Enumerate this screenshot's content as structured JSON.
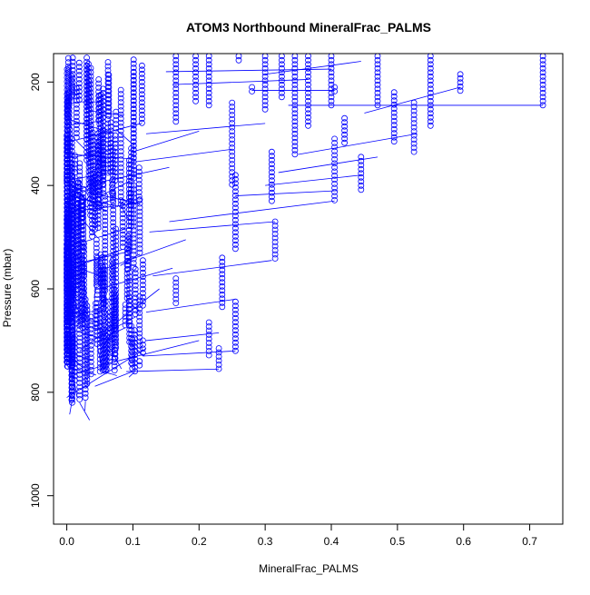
{
  "chart_data": {
    "type": "scatter",
    "title": "ATOM3 Northbound MineralFrac_PALMS",
    "xlabel": "MineralFrac_PALMS",
    "ylabel": "Pressure (mbar)",
    "xlim": [
      -0.02,
      0.75
    ],
    "ylim": [
      1055,
      145
    ],
    "y_reversed": true,
    "xticks": [
      0.0,
      0.1,
      0.2,
      0.3,
      0.4,
      0.5,
      0.6,
      0.7
    ],
    "xtick_labels": [
      "0.0",
      "0.1",
      "0.2",
      "0.3",
      "0.4",
      "0.5",
      "0.6",
      "0.7"
    ],
    "yticks": [
      200,
      400,
      600,
      800,
      1000
    ],
    "ytick_labels": [
      "200",
      "400",
      "600",
      "800",
      "1000"
    ],
    "grid": false,
    "marker": "open-circle",
    "connect_points": true,
    "color": "#0000ff",
    "profiles": [
      {
        "x": 0.72,
        "y": [
          150,
          245
        ]
      },
      {
        "x": 0.595,
        "y": [
          185,
          222
        ]
      },
      {
        "x": 0.55,
        "y": [
          150,
          285
        ]
      },
      {
        "x": 0.525,
        "y": [
          240,
          335
        ]
      },
      {
        "x": 0.495,
        "y": [
          220,
          315
        ]
      },
      {
        "x": 0.47,
        "y": [
          150,
          250
        ]
      },
      {
        "x": 0.445,
        "y": [
          345,
          415
        ]
      },
      {
        "x": 0.42,
        "y": [
          270,
          320
        ]
      },
      {
        "x": 0.405,
        "y": [
          310,
          430
        ]
      },
      {
        "x": 0.405,
        "y": [
          210,
          222
        ]
      },
      {
        "x": 0.4,
        "y": [
          150,
          245
        ]
      },
      {
        "x": 0.365,
        "y": [
          150,
          290
        ]
      },
      {
        "x": 0.345,
        "y": [
          150,
          345
        ]
      },
      {
        "x": 0.325,
        "y": [
          150,
          235
        ]
      },
      {
        "x": 0.315,
        "y": [
          470,
          545
        ]
      },
      {
        "x": 0.31,
        "y": [
          335,
          435
        ]
      },
      {
        "x": 0.3,
        "y": [
          150,
          260
        ]
      },
      {
        "x": 0.28,
        "y": [
          210,
          220
        ]
      },
      {
        "x": 0.26,
        "y": [
          150,
          160
        ]
      },
      {
        "x": 0.255,
        "y": [
          625,
          725
        ]
      },
      {
        "x": 0.255,
        "y": [
          380,
          530
        ]
      },
      {
        "x": 0.25,
        "y": [
          240,
          400
        ]
      },
      {
        "x": 0.235,
        "y": [
          540,
          640
        ]
      },
      {
        "x": 0.23,
        "y": [
          715,
          755
        ]
      },
      {
        "x": 0.215,
        "y": [
          665,
          730
        ]
      },
      {
        "x": 0.215,
        "y": [
          150,
          250
        ]
      },
      {
        "x": 0.195,
        "y": [
          150,
          240
        ]
      },
      {
        "x": 0.165,
        "y": [
          150,
          280
        ]
      },
      {
        "x": 0.165,
        "y": [
          580,
          630
        ]
      },
      {
        "x": 0.115,
        "y": [
          545,
          635
        ]
      },
      {
        "x": 0.115,
        "y": [
          700,
          730
        ]
      },
      {
        "x": 0.11,
        "y": [
          615,
          720
        ]
      },
      {
        "x": 0.11,
        "y": [
          740,
          752
        ]
      }
    ],
    "connectors": [
      {
        "x": [
          0.72,
          0.335
        ],
        "y": [
          245,
          245
        ]
      },
      {
        "x": [
          0.595,
          0.45
        ],
        "y": [
          210,
          260
        ]
      },
      {
        "x": [
          0.53,
          0.35
        ],
        "y": [
          300,
          340
        ]
      },
      {
        "x": [
          0.47,
          0.32
        ],
        "y": [
          345,
          375
        ]
      },
      {
        "x": [
          0.445,
          0.3
        ],
        "y": [
          380,
          400
        ]
      },
      {
        "x": [
          0.41,
          0.255
        ],
        "y": [
          410,
          420
        ]
      },
      {
        "x": [
          0.405,
          0.155
        ],
        "y": [
          430,
          470
        ]
      },
      {
        "x": [
          0.315,
          0.125
        ],
        "y": [
          470,
          490
        ]
      },
      {
        "x": [
          0.31,
          0.13
        ],
        "y": [
          545,
          575
        ]
      },
      {
        "x": [
          0.255,
          0.12
        ],
        "y": [
          620,
          645
        ]
      },
      {
        "x": [
          0.255,
          0.115
        ],
        "y": [
          720,
          730
        ]
      },
      {
        "x": [
          0.23,
          0.12
        ],
        "y": [
          685,
          700
        ]
      },
      {
        "x": [
          0.23,
          0.09
        ],
        "y": [
          755,
          760
        ]
      },
      {
        "x": [
          0.2,
          0.06
        ],
        "y": [
          700,
          745
        ]
      },
      {
        "x": [
          0.4,
          0.15
        ],
        "y": [
          175,
          180
        ]
      },
      {
        "x": [
          0.365,
          0.16
        ],
        "y": [
          195,
          205
        ]
      },
      {
        "x": [
          0.3,
          0.12
        ],
        "y": [
          280,
          300
        ]
      },
      {
        "x": [
          0.25,
          0.1
        ],
        "y": [
          330,
          355
        ]
      },
      {
        "x": [
          0.445,
          0.3
        ],
        "y": [
          160,
          185
        ]
      },
      {
        "x": [
          0.2,
          0.1
        ],
        "y": [
          295,
          335
        ]
      },
      {
        "x": [
          0.18,
          0.06
        ],
        "y": [
          505,
          560
        ]
      },
      {
        "x": [
          0.16,
          0.05
        ],
        "y": [
          560,
          600
        ]
      },
      {
        "x": [
          0.155,
          0.045
        ],
        "y": [
          365,
          395
        ]
      },
      {
        "x": [
          0.14,
          0.02
        ],
        "y": [
          600,
          720
        ]
      },
      {
        "x": [
          0.12,
          0.0
        ],
        "y": [
          715,
          810
        ]
      },
      {
        "x": [
          0.405,
          0.28
        ],
        "y": [
          216,
          216
        ]
      }
    ],
    "dense_region": {
      "x_range": [
        0.0,
        0.12
      ],
      "y_range": [
        150,
        820
      ]
    }
  }
}
